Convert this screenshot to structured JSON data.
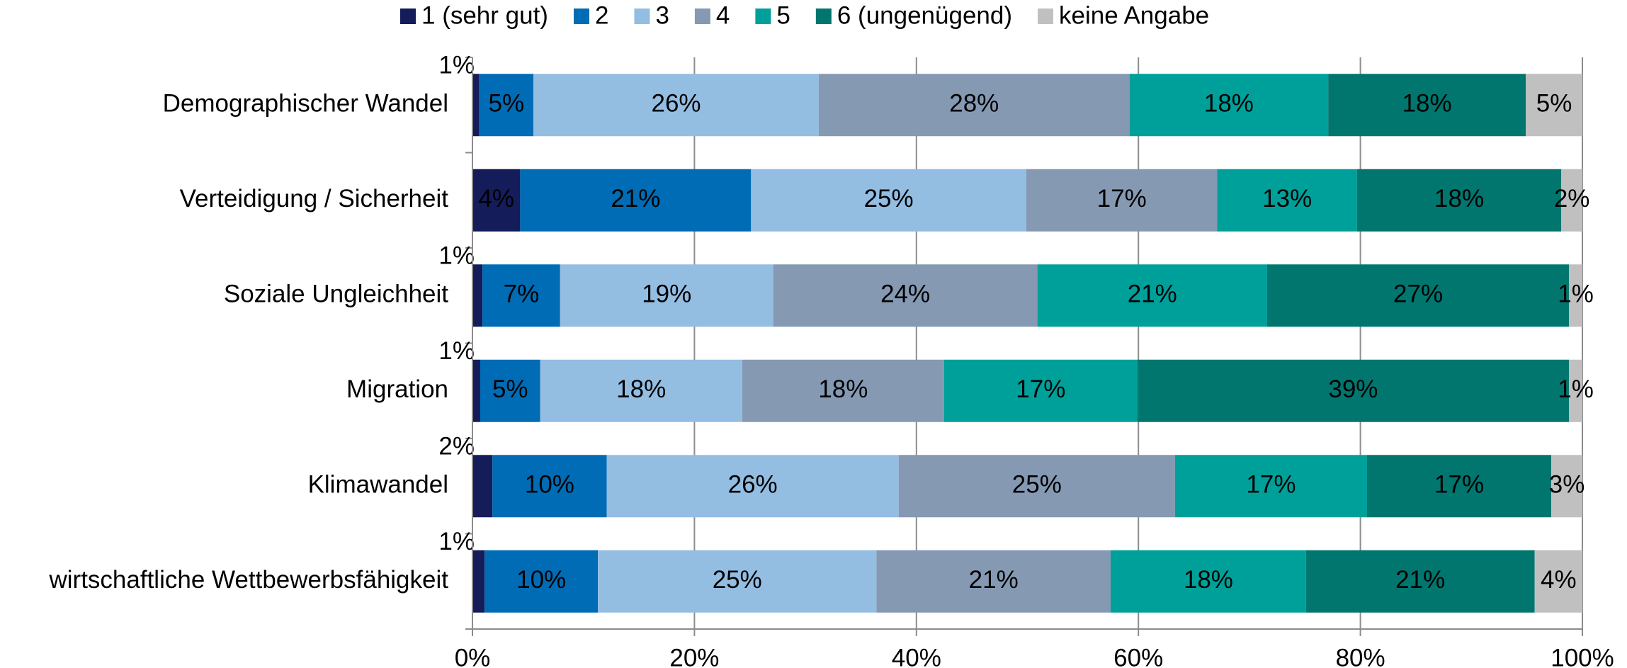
{
  "chart_data": {
    "type": "stacked_barh",
    "categories": [
      "Demographischer Wandel",
      "Verteidigung / Sicherheit",
      "Soziale Ungleichheit",
      "Migration",
      "Klimawandel",
      "wirtschaftliche Wettbewerbsfähigkeit"
    ],
    "series": [
      {
        "name": "1 (sehr gut)",
        "color": "#141c5a",
        "values": [
          0.6,
          4.3,
          0.9,
          0.7,
          1.8,
          1.1
        ],
        "value_labels": [
          "1%",
          "4%",
          "1%",
          "1%",
          "2%",
          "1%"
        ]
      },
      {
        "name": "2",
        "color": "#006cb5",
        "values": [
          4.9,
          20.8,
          7.0,
          5.4,
          10.3,
          10.2
        ],
        "value_labels": [
          "5%",
          "21%",
          "7%",
          "5%",
          "10%",
          "10%"
        ]
      },
      {
        "name": "3",
        "color": "#94bde2",
        "values": [
          25.7,
          24.8,
          19.2,
          18.2,
          26.3,
          25.1
        ],
        "value_labels": [
          "26%",
          "25%",
          "19%",
          "18%",
          "26%",
          "25%"
        ]
      },
      {
        "name": "4",
        "color": "#8599b3",
        "values": [
          28.0,
          17.2,
          23.8,
          18.2,
          24.9,
          21.1
        ],
        "value_labels": [
          "28%",
          "17%",
          "24%",
          "18%",
          "25%",
          "21%"
        ]
      },
      {
        "name": "5",
        "color": "#00a09a",
        "values": [
          17.9,
          12.6,
          20.7,
          17.4,
          17.3,
          17.6
        ],
        "value_labels": [
          "18%",
          "13%",
          "21%",
          "17%",
          "17%",
          "18%"
        ]
      },
      {
        "name": "6 (ungenügend)",
        "color": "#00766f",
        "values": [
          17.8,
          18.4,
          27.2,
          38.9,
          16.6,
          20.6
        ],
        "value_labels": [
          "18%",
          "18%",
          "27%",
          "39%",
          "17%",
          "21%"
        ]
      },
      {
        "name": "keine Angabe",
        "color": "#c0c0c0",
        "values": [
          5.1,
          1.9,
          1.2,
          1.2,
          2.8,
          4.3
        ],
        "value_labels": [
          "5%",
          "2%",
          "1%",
          "1%",
          "3%",
          "4%"
        ]
      }
    ],
    "xlim": [
      0,
      100
    ],
    "xticks": [
      {
        "value": 0,
        "label": "0%"
      },
      {
        "value": 20,
        "label": "20%"
      },
      {
        "value": 40,
        "label": "40%"
      },
      {
        "value": 60,
        "label": "60%"
      },
      {
        "value": 80,
        "label": "80%"
      },
      {
        "value": 100,
        "label": "100%"
      }
    ],
    "grid": true,
    "legend": "top"
  }
}
